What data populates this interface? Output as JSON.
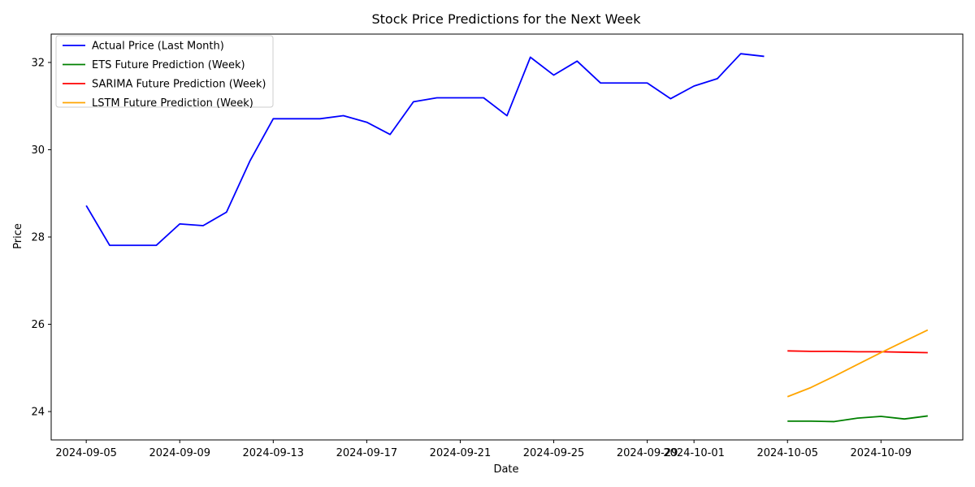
{
  "chart_data": {
    "type": "line",
    "title": "Stock Price Predictions for the Next Week",
    "xlabel": "Date",
    "ylabel": "Price",
    "xlim": [
      "2024-09-03T12:00",
      "2024-10-12T12:00"
    ],
    "ylim": [
      23.35,
      32.65
    ],
    "x_ticks": [
      "2024-09-05",
      "2024-09-09",
      "2024-09-13",
      "2024-09-17",
      "2024-09-21",
      "2024-09-25",
      "2024-09-29",
      "2024-10-01",
      "2024-10-05",
      "2024-10-09"
    ],
    "y_ticks": [
      24,
      26,
      28,
      30,
      32
    ],
    "grid": false,
    "legend_position": "top-left",
    "series": [
      {
        "name": "Actual Price (Last Month)",
        "color": "#0000ff",
        "x": [
          "2024-09-05",
          "2024-09-06",
          "2024-09-07",
          "2024-09-08",
          "2024-09-09",
          "2024-09-10",
          "2024-09-11",
          "2024-09-12",
          "2024-09-13",
          "2024-09-14",
          "2024-09-15",
          "2024-09-16",
          "2024-09-17",
          "2024-09-18",
          "2024-09-19",
          "2024-09-20",
          "2024-09-21",
          "2024-09-22",
          "2024-09-23",
          "2024-09-24",
          "2024-09-25",
          "2024-09-26",
          "2024-09-27",
          "2024-09-28",
          "2024-09-29",
          "2024-09-30",
          "2024-10-01",
          "2024-10-02",
          "2024-10-03",
          "2024-10-04"
        ],
        "y": [
          28.72,
          27.81,
          27.81,
          27.81,
          28.3,
          28.26,
          28.57,
          29.74,
          30.71,
          30.71,
          30.71,
          30.78,
          30.63,
          30.35,
          31.1,
          31.19,
          31.19,
          31.19,
          30.78,
          32.12,
          31.71,
          32.03,
          31.53,
          31.53,
          31.53,
          31.17,
          31.46,
          31.63,
          32.2,
          32.14
        ]
      },
      {
        "name": "ETS Future Prediction (Week)",
        "color": "#008000",
        "x": [
          "2024-10-05",
          "2024-10-06",
          "2024-10-07",
          "2024-10-08",
          "2024-10-09",
          "2024-10-10",
          "2024-10-11"
        ],
        "y": [
          23.78,
          23.78,
          23.77,
          23.85,
          23.89,
          23.83,
          23.9
        ]
      },
      {
        "name": "SARIMA Future Prediction (Week)",
        "color": "#ff0000",
        "x": [
          "2024-10-05",
          "2024-10-06",
          "2024-10-07",
          "2024-10-08",
          "2024-10-09",
          "2024-10-10",
          "2024-10-11"
        ],
        "y": [
          25.39,
          25.38,
          25.38,
          25.37,
          25.37,
          25.36,
          25.35
        ]
      },
      {
        "name": "LSTM Future Prediction (Week)",
        "color": "#ffa500",
        "x": [
          "2024-10-05",
          "2024-10-06",
          "2024-10-07",
          "2024-10-08",
          "2024-10-09",
          "2024-10-10",
          "2024-10-11"
        ],
        "y": [
          24.34,
          24.55,
          24.81,
          25.08,
          25.35,
          25.61,
          25.87
        ]
      }
    ]
  }
}
